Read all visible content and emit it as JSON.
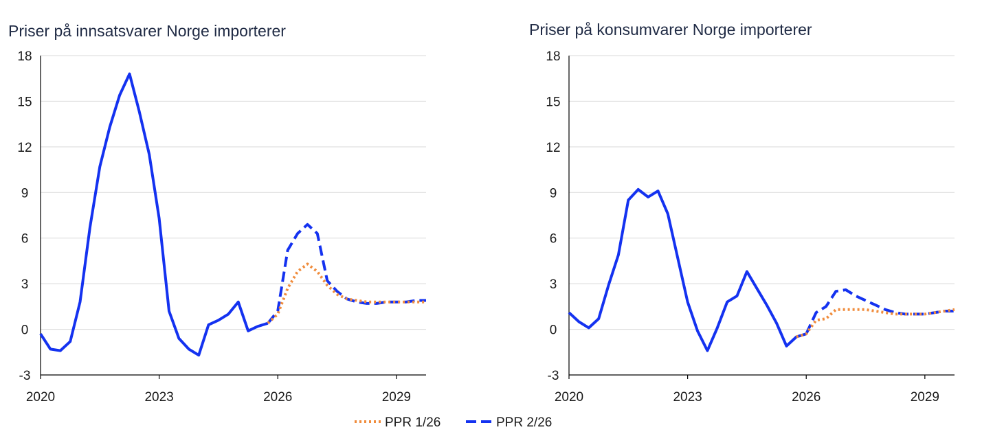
{
  "chart_data": [
    {
      "type": "line",
      "title": "Priser på innsatsvarer Norge importerer",
      "xlabel": "",
      "ylabel": "",
      "ylim": [
        -3,
        18
      ],
      "xlim": [
        2020,
        2029.75
      ],
      "y_ticks": [
        "18",
        "15",
        "12",
        "9",
        "6",
        "3",
        "0",
        "-3"
      ],
      "x_ticks": [
        "2020",
        "2023",
        "2026",
        "2029"
      ],
      "grid": "horizontal",
      "series": [
        {
          "name": "PPR 2/26",
          "color": "#1432f0",
          "style": "solid",
          "x": [
            2020,
            2020.25,
            2020.5,
            2020.75,
            2021,
            2021.25,
            2021.5,
            2021.75,
            2022,
            2022.25,
            2022.5,
            2022.75,
            2023,
            2023.25,
            2023.5,
            2023.75,
            2024,
            2024.25,
            2024.5,
            2024.75,
            2025,
            2025.25,
            2025.5,
            2025.75
          ],
          "values": [
            -0.3,
            -1.3,
            -1.4,
            -0.8,
            1.8,
            6.7,
            10.7,
            13.3,
            15.4,
            16.8,
            14.3,
            11.5,
            7.3,
            1.2,
            -0.6,
            -1.3,
            -1.7,
            0.3,
            0.6,
            1.0,
            1.8,
            -0.1,
            0.2,
            0.4
          ]
        },
        {
          "name": "PPR 2/26",
          "color": "#1432f0",
          "style": "dashed",
          "x": [
            2025.75,
            2026,
            2026.25,
            2026.5,
            2026.75,
            2027,
            2027.25,
            2027.5,
            2027.75,
            2028,
            2028.25,
            2028.5,
            2028.75,
            2029,
            2029.25,
            2029.5,
            2029.75
          ],
          "values": [
            0.4,
            1.2,
            5.2,
            6.3,
            6.9,
            6.3,
            3.2,
            2.5,
            2.0,
            1.8,
            1.7,
            1.7,
            1.8,
            1.8,
            1.8,
            1.9,
            1.9
          ]
        },
        {
          "name": "PPR 1/26",
          "color": "#f08c3c",
          "style": "dotted",
          "x": [
            2025.75,
            2026,
            2026.25,
            2026.5,
            2026.75,
            2027,
            2027.25,
            2027.5,
            2027.75,
            2028,
            2028.25,
            2028.5,
            2028.75,
            2029,
            2029.25,
            2029.5,
            2029.75
          ],
          "values": [
            0.4,
            1.0,
            2.7,
            3.8,
            4.3,
            3.8,
            2.9,
            2.3,
            2.0,
            1.9,
            1.8,
            1.8,
            1.8,
            1.8,
            1.8,
            1.8,
            1.8
          ]
        }
      ]
    },
    {
      "type": "line",
      "title": "Priser på konsumvarer Norge importerer",
      "xlabel": "",
      "ylabel": "",
      "ylim": [
        -3,
        18
      ],
      "xlim": [
        2020,
        2029.75
      ],
      "y_ticks": [
        "18",
        "15",
        "12",
        "9",
        "6",
        "3",
        "0",
        "-3"
      ],
      "x_ticks": [
        "2020",
        "2023",
        "2026",
        "2029"
      ],
      "grid": "horizontal",
      "series": [
        {
          "name": "PPR 2/26",
          "color": "#1432f0",
          "style": "solid",
          "x": [
            2020,
            2020.25,
            2020.5,
            2020.75,
            2021,
            2021.25,
            2021.5,
            2021.75,
            2022,
            2022.25,
            2022.5,
            2022.75,
            2023,
            2023.25,
            2023.5,
            2023.75,
            2024,
            2024.25,
            2024.5,
            2024.75,
            2025,
            2025.25,
            2025.5,
            2025.75,
            2026
          ],
          "values": [
            1.1,
            0.5,
            0.1,
            0.7,
            2.9,
            4.9,
            8.5,
            9.2,
            8.7,
            9.1,
            7.6,
            4.7,
            1.8,
            -0.1,
            -1.4,
            0.1,
            1.8,
            2.2,
            3.8,
            2.7,
            1.6,
            0.4,
            -1.1,
            -0.5,
            -0.3
          ]
        },
        {
          "name": "PPR 2/26",
          "color": "#1432f0",
          "style": "dashed",
          "x": [
            2026,
            2026.25,
            2026.5,
            2026.75,
            2027,
            2027.25,
            2027.5,
            2027.75,
            2028,
            2028.25,
            2028.5,
            2028.75,
            2029,
            2029.25,
            2029.5,
            2029.75
          ],
          "values": [
            -0.3,
            1.1,
            1.5,
            2.5,
            2.6,
            2.2,
            1.9,
            1.6,
            1.3,
            1.1,
            1.0,
            1.0,
            1.0,
            1.1,
            1.2,
            1.2
          ]
        },
        {
          "name": "PPR 1/26",
          "color": "#f08c3c",
          "style": "dotted",
          "x": [
            2025.75,
            2026,
            2026.25,
            2026.5,
            2026.75,
            2027,
            2027.25,
            2027.5,
            2027.75,
            2028,
            2028.25,
            2028.5,
            2028.75,
            2029,
            2029.25,
            2029.5,
            2029.75
          ],
          "values": [
            -0.5,
            -0.3,
            0.6,
            0.7,
            1.3,
            1.3,
            1.3,
            1.3,
            1.2,
            1.1,
            1.0,
            1.0,
            1.0,
            1.0,
            1.1,
            1.2,
            1.3
          ]
        }
      ]
    }
  ],
  "legend": {
    "placement": "bottom-center",
    "items": [
      {
        "label": "PPR 1/26",
        "color": "#f08c3c",
        "style": "dotted"
      },
      {
        "label": "PPR 2/26",
        "color": "#1432f0",
        "style": "dashed"
      }
    ]
  }
}
